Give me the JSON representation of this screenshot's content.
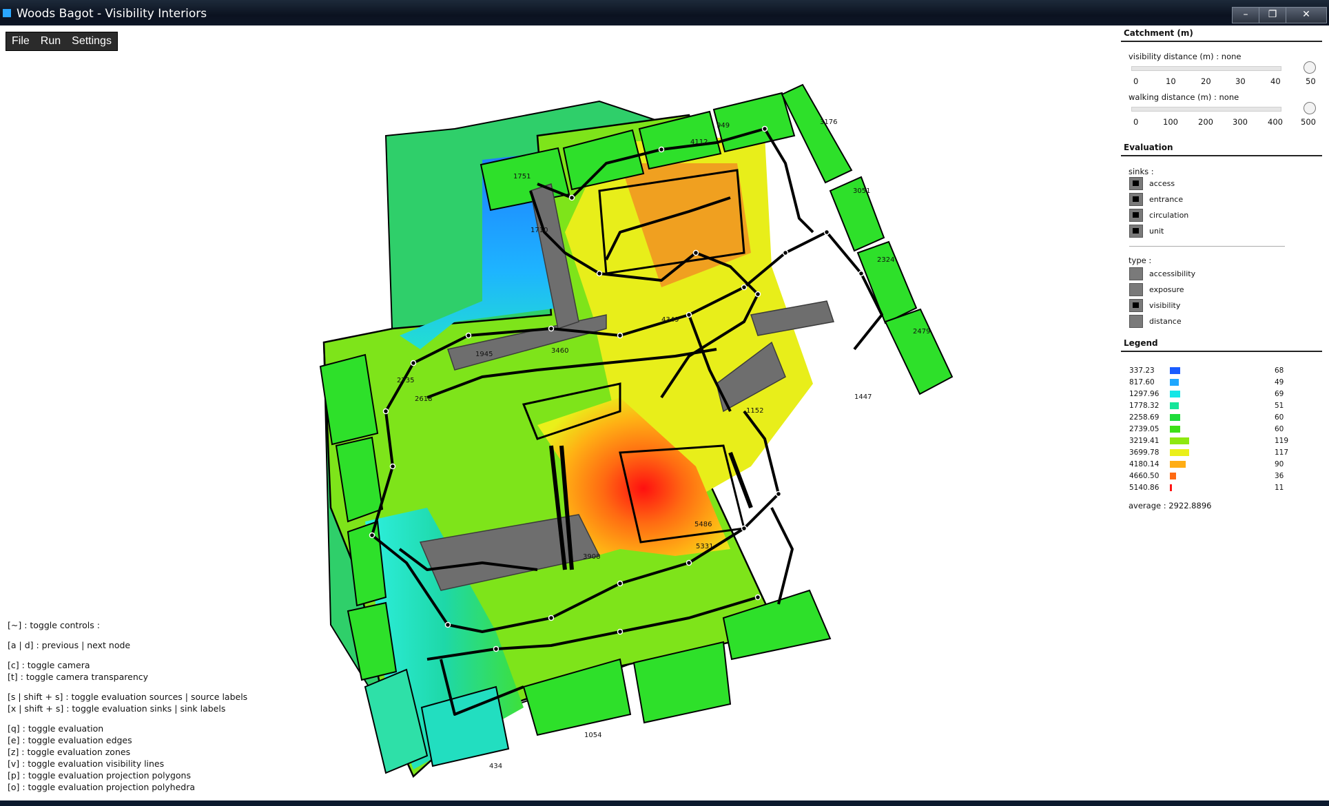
{
  "window": {
    "title": "Woods Bagot - Visibility Interiors",
    "minimize": "–",
    "maximize": "❐",
    "close": "✕"
  },
  "menu": {
    "items": [
      "File",
      "Run",
      "Settings"
    ]
  },
  "help": [
    "[~] : toggle controls :",
    "[a | d] : previous | next node",
    "[c] : toggle camera",
    "[t] : toggle camera transparency",
    "[s | shift + s] : toggle evaluation sources | source labels",
    "[x | shift + s] : toggle evaluation sinks | sink labels",
    "[q] : toggle evaluation",
    "[e] : toggle evaluation edges",
    "[z] : toggle evaluation zones",
    "[v] : toggle evaluation visibility lines",
    "[p] : toggle evaluation projection polygons",
    "[o] : toggle evaluation projection polyhedra"
  ],
  "panel": {
    "catchment": {
      "title": "Catchment (m)",
      "visibility_label": "visibility distance (m) : none",
      "visibility_ticks": [
        "0",
        "10",
        "20",
        "30",
        "40",
        "50"
      ],
      "walking_label": "walking distance (m) : none",
      "walking_ticks": [
        "0",
        "100",
        "200",
        "300",
        "400",
        "500"
      ]
    },
    "evaluation": {
      "title": "Evaluation",
      "sinks_label": "sinks :",
      "sinks": [
        {
          "label": "access",
          "checked": true
        },
        {
          "label": "entrance",
          "checked": true
        },
        {
          "label": "circulation",
          "checked": true
        },
        {
          "label": "unit",
          "checked": true
        }
      ],
      "type_label": "type :",
      "types": [
        {
          "label": "accessibility",
          "checked": false
        },
        {
          "label": "exposure",
          "checked": false
        },
        {
          "label": "visibility",
          "checked": true
        },
        {
          "label": "distance",
          "checked": false
        }
      ]
    },
    "legend": {
      "title": "Legend",
      "rows": [
        {
          "value": "337.23",
          "count": "68",
          "color": "#1a5cff",
          "fill": 0.06
        },
        {
          "value": "817.60",
          "count": "49",
          "color": "#1ea7ff",
          "fill": 0.05
        },
        {
          "value": "1297.96",
          "count": "69",
          "color": "#14e6e6",
          "fill": 0.06
        },
        {
          "value": "1778.32",
          "count": "51",
          "color": "#16e59a",
          "fill": 0.05
        },
        {
          "value": "2258.69",
          "count": "60",
          "color": "#1edc3a",
          "fill": 0.06
        },
        {
          "value": "2739.05",
          "count": "60",
          "color": "#3ee018",
          "fill": 0.06
        },
        {
          "value": "3219.41",
          "count": "119",
          "color": "#8ee810",
          "fill": 0.11
        },
        {
          "value": "3699.78",
          "count": "117",
          "color": "#eaf01a",
          "fill": 0.11
        },
        {
          "value": "4180.14",
          "count": "90",
          "color": "#ffad14",
          "fill": 0.09
        },
        {
          "value": "4660.50",
          "count": "36",
          "color": "#ff6a12",
          "fill": 0.035
        },
        {
          "value": "5140.86",
          "count": "11",
          "color": "#ff1414",
          "fill": 0.012
        }
      ],
      "average": "average : 2922.8896"
    }
  }
}
